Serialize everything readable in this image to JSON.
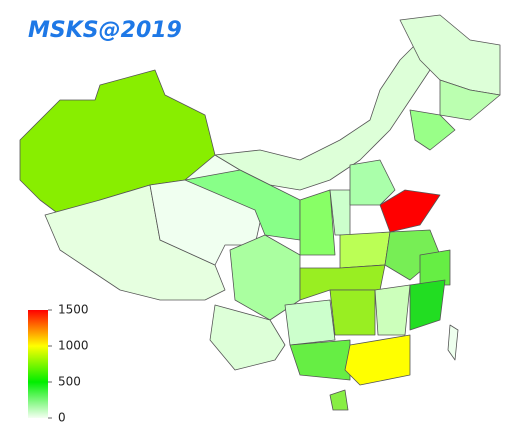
{
  "title": "MSKS@2019",
  "legend": {
    "range": [
      0,
      1500
    ],
    "ticks": [
      0,
      500,
      1000,
      1500
    ],
    "colors": [
      "#f4fff2",
      "#00ee00",
      "#ffff00",
      "#ff0000"
    ]
  }
}
